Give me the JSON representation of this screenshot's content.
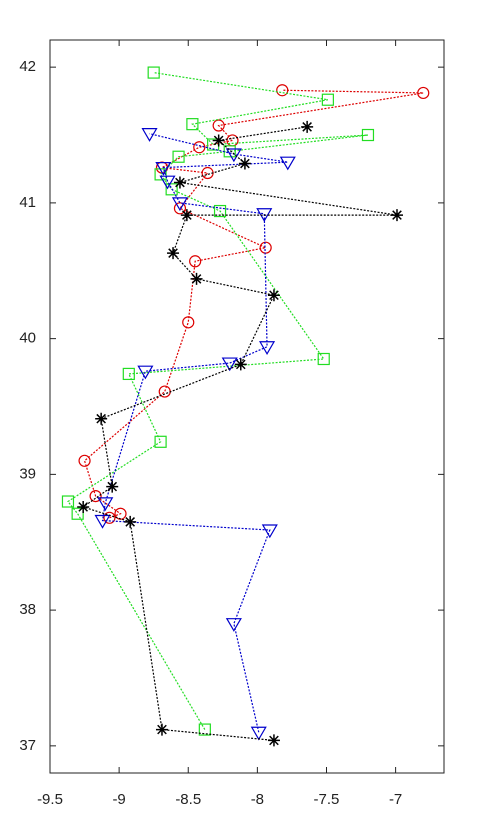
{
  "chart_data": {
    "type": "line",
    "xlim": [
      -9.5,
      -6.65
    ],
    "ylim": [
      36.8,
      42.2
    ],
    "xticks": [
      -9.5,
      -9,
      -8.5,
      -8,
      -7.5,
      -7
    ],
    "yticks": [
      37,
      38,
      39,
      40,
      41,
      42
    ],
    "grid": false,
    "series": [
      {
        "color": "#dd0000",
        "marker": "circle",
        "x": [
          -9.07,
          -8.99,
          -9.17,
          -9.25,
          -8.67,
          -8.5,
          -8.45,
          -7.94,
          -8.56,
          -8.36,
          -8.69,
          -8.42,
          -8.18,
          -8.28,
          -6.8,
          -7.82
        ],
        "values": [
          38.68,
          38.71,
          38.84,
          39.1,
          39.61,
          40.12,
          40.57,
          40.67,
          40.96,
          41.22,
          41.26,
          41.41,
          41.46,
          41.57,
          41.81,
          41.83
        ]
      },
      {
        "color": "#22dd22",
        "marker": "square",
        "x": [
          -8.38,
          -9.3,
          -9.37,
          -8.7,
          -8.93,
          -7.52,
          -8.27,
          -8.62,
          -8.7,
          -8.57,
          -8.2,
          -7.2,
          -8.32,
          -8.47,
          -7.49,
          -8.75
        ],
        "values": [
          37.12,
          38.71,
          38.8,
          39.24,
          39.74,
          39.85,
          40.94,
          41.1,
          41.21,
          41.34,
          41.38,
          41.5,
          41.43,
          41.58,
          41.76,
          41.96
        ]
      },
      {
        "color": "#0000cc",
        "marker": "triangle",
        "x": [
          -7.99,
          -8.17,
          -7.91,
          -9.12,
          -9.1,
          -8.81,
          -8.2,
          -7.93,
          -7.95,
          -8.56,
          -8.65,
          -8.68,
          -7.78,
          -8.17,
          -8.78
        ],
        "values": [
          37.1,
          37.9,
          38.59,
          38.66,
          38.79,
          39.76,
          39.82,
          39.94,
          40.92,
          41.0,
          41.16,
          41.26,
          41.3,
          41.36,
          41.51
        ]
      },
      {
        "color": "#000000",
        "marker": "asterisk",
        "x": [
          -7.88,
          -8.69,
          -8.92,
          -9.26,
          -9.05,
          -9.13,
          -8.12,
          -7.88,
          -8.44,
          -8.61,
          -8.51,
          -6.99,
          -8.56,
          -8.09,
          -8.28,
          -7.64
        ],
        "values": [
          37.04,
          37.12,
          38.65,
          38.76,
          38.91,
          39.41,
          39.81,
          40.32,
          40.44,
          40.63,
          40.91,
          40.91,
          41.15,
          41.29,
          41.46,
          41.56
        ]
      }
    ]
  }
}
